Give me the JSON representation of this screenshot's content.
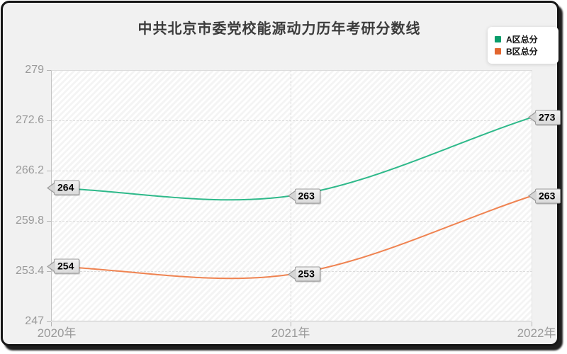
{
  "title": "中共北京市委党校能源动力历年考研分数线",
  "legend": {
    "items": [
      {
        "label": "A区总分",
        "color": "#0a9c6a"
      },
      {
        "label": "B区总分",
        "color": "#e2652e"
      }
    ]
  },
  "chart_data": {
    "type": "line",
    "title": "中共北京市委党校能源动力历年考研分数线",
    "categories": [
      "2020年",
      "2021年",
      "2022年"
    ],
    "series": [
      {
        "name": "A区总分",
        "color": "#2eb98a",
        "marker_color": "#0a9c6a",
        "values": [
          264,
          263,
          273
        ]
      },
      {
        "name": "B区总分",
        "color": "#ef8351",
        "marker_color": "#e2652e",
        "values": [
          254,
          253,
          263
        ]
      }
    ],
    "ylim": [
      247,
      279
    ],
    "yticks": [
      279,
      272.6,
      266.2,
      259.8,
      253.4,
      247
    ],
    "smooth": true,
    "data_labels": true,
    "grid": "horizontal dashed at each ytick, vertical dashed at 2021年",
    "legend_position": "top-right",
    "background": "#f1f1f1",
    "plot_pattern": "light diagonal hatch"
  }
}
